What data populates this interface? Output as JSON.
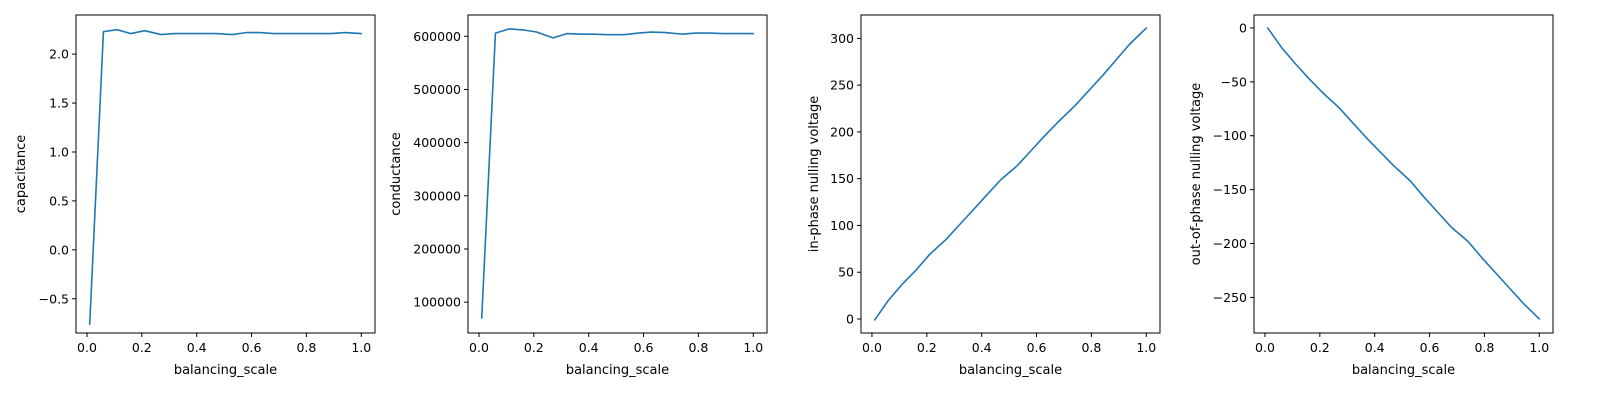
{
  "chart_data": [
    {
      "type": "line",
      "xlabel": "balancing_scale",
      "ylabel": "capacitance",
      "xlim": [
        -0.04,
        1.05
      ],
      "ylim": [
        -0.85,
        2.4
      ],
      "xticks": [
        0.0,
        0.2,
        0.4,
        0.6,
        0.8,
        1.0
      ],
      "xtick_labels": [
        "0.0",
        "0.2",
        "0.4",
        "0.6",
        "0.8",
        "1.0"
      ],
      "yticks": [
        -0.5,
        0.0,
        0.5,
        1.0,
        1.5,
        2.0
      ],
      "ytick_labels": [
        "−0.5",
        "0.0",
        "0.5",
        "1.0",
        "1.5",
        "2.0"
      ],
      "x": [
        0.01,
        0.06,
        0.11,
        0.16,
        0.21,
        0.27,
        0.32,
        0.37,
        0.42,
        0.47,
        0.53,
        0.58,
        0.63,
        0.68,
        0.74,
        0.79,
        0.84,
        0.89,
        0.94,
        1.0
      ],
      "y": [
        -0.76,
        2.23,
        2.25,
        2.21,
        2.24,
        2.2,
        2.21,
        2.21,
        2.21,
        2.21,
        2.2,
        2.22,
        2.22,
        2.21,
        2.21,
        2.21,
        2.21,
        2.21,
        2.22,
        2.21
      ],
      "color": "#1f77b4"
    },
    {
      "type": "line",
      "xlabel": "balancing_scale",
      "ylabel": "conductance",
      "xlim": [
        -0.04,
        1.05
      ],
      "ylim": [
        42000,
        640000
      ],
      "xticks": [
        0.0,
        0.2,
        0.4,
        0.6,
        0.8,
        1.0
      ],
      "xtick_labels": [
        "0.0",
        "0.2",
        "0.4",
        "0.6",
        "0.8",
        "1.0"
      ],
      "yticks": [
        100000,
        200000,
        300000,
        400000,
        500000,
        600000
      ],
      "ytick_labels": [
        "100000",
        "200000",
        "300000",
        "400000",
        "500000",
        "600000"
      ],
      "x": [
        0.01,
        0.06,
        0.11,
        0.16,
        0.21,
        0.27,
        0.32,
        0.37,
        0.42,
        0.47,
        0.53,
        0.58,
        0.63,
        0.68,
        0.74,
        0.79,
        0.84,
        0.89,
        0.94,
        1.0
      ],
      "y": [
        70000,
        606000,
        614000,
        612000,
        608000,
        597000,
        605000,
        604000,
        604000,
        603000,
        603000,
        606000,
        608000,
        607000,
        604000,
        606000,
        606000,
        605000,
        605000,
        605000
      ],
      "color": "#1f77b4"
    },
    {
      "type": "line",
      "xlabel": "balancing_scale",
      "ylabel": "in-phase nulling voltage",
      "xlim": [
        -0.04,
        1.05
      ],
      "ylim": [
        -15,
        325
      ],
      "xticks": [
        0.0,
        0.2,
        0.4,
        0.6,
        0.8,
        1.0
      ],
      "xtick_labels": [
        "0.0",
        "0.2",
        "0.4",
        "0.6",
        "0.8",
        "1.0"
      ],
      "yticks": [
        0,
        50,
        100,
        150,
        200,
        250,
        300
      ],
      "ytick_labels": [
        "0",
        "50",
        "100",
        "150",
        "200",
        "250",
        "300"
      ],
      "x": [
        0.01,
        0.06,
        0.11,
        0.16,
        0.21,
        0.27,
        0.32,
        0.37,
        0.42,
        0.47,
        0.53,
        0.58,
        0.63,
        0.68,
        0.74,
        0.79,
        0.84,
        0.89,
        0.94,
        1.0
      ],
      "y": [
        -1,
        20,
        37,
        52,
        69,
        85,
        101,
        117,
        133,
        149,
        164,
        180,
        196,
        211,
        228,
        244,
        260,
        277,
        294,
        311
      ],
      "color": "#1f77b4"
    },
    {
      "type": "line",
      "xlabel": "balancing_scale",
      "ylabel": "out-of-phase nulling voltage",
      "xlim": [
        -0.04,
        1.05
      ],
      "ylim": [
        -283,
        12
      ],
      "xticks": [
        0.0,
        0.2,
        0.4,
        0.6,
        0.8,
        1.0
      ],
      "xtick_labels": [
        "0.0",
        "0.2",
        "0.4",
        "0.6",
        "0.8",
        "1.0"
      ],
      "yticks": [
        -250,
        -200,
        -150,
        -100,
        -50,
        0
      ],
      "ytick_labels": [
        "−250",
        "−200",
        "−150",
        "−100",
        "−50",
        "0"
      ],
      "x": [
        0.01,
        0.06,
        0.11,
        0.16,
        0.21,
        0.27,
        0.32,
        0.37,
        0.42,
        0.47,
        0.53,
        0.58,
        0.63,
        0.68,
        0.74,
        0.79,
        0.84,
        0.89,
        0.94,
        1.0
      ],
      "y": [
        0,
        -18,
        -33,
        -47,
        -60,
        -74,
        -88,
        -102,
        -115,
        -128,
        -142,
        -157,
        -171,
        -185,
        -198,
        -213,
        -227,
        -241,
        -255,
        -270
      ],
      "color": "#1f77b4"
    }
  ]
}
